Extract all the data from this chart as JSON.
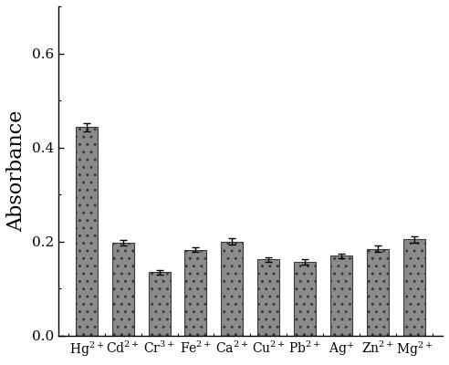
{
  "categories": [
    "Hg$^{2+}$",
    "Cd$^{2+}$",
    "Cr$^{3+}$",
    "Fe$^{2+}$",
    "Ca$^{2+}$",
    "Cu$^{2+}$",
    "Pb$^{2+}$",
    "Ag$^{+}$",
    "Zn$^{2+}$",
    "Mg$^{2+}$"
  ],
  "values": [
    0.443,
    0.198,
    0.135,
    0.183,
    0.2,
    0.162,
    0.157,
    0.17,
    0.185,
    0.205
  ],
  "errors": [
    0.008,
    0.006,
    0.005,
    0.005,
    0.007,
    0.005,
    0.006,
    0.005,
    0.006,
    0.007
  ],
  "bar_color": "#8b8b8b",
  "bar_edgecolor": "#3a3a3a",
  "ylabel": "Absorbance",
  "ylim": [
    0.0,
    0.7
  ],
  "yticks": [
    0.0,
    0.2,
    0.4,
    0.6
  ],
  "background_color": "#ffffff",
  "fig_width": 4.92,
  "fig_height": 4.0,
  "dpi": 100,
  "ylabel_fontsize": 16,
  "tick_fontsize": 11,
  "xlabel_fontsize": 10
}
